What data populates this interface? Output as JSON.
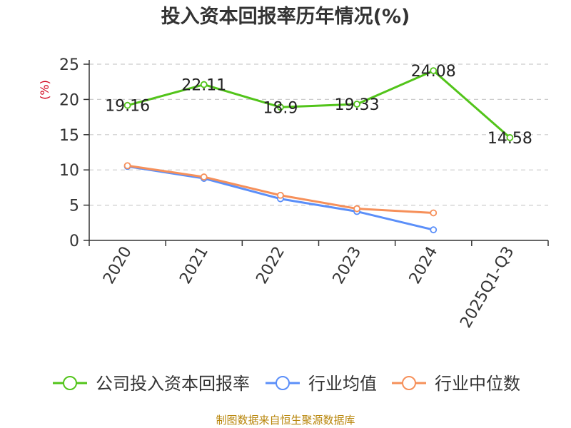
{
  "chart_data": {
    "type": "line",
    "title": "投入资本回报率历年情况(%)",
    "ylabel": "(%)",
    "xlabel": "",
    "ylim": [
      0,
      25
    ],
    "yticks": [
      0,
      5,
      10,
      15,
      20,
      25
    ],
    "grid": true,
    "legend_position": "bottom",
    "categories": [
      "2020",
      "2021",
      "2022",
      "2023",
      "2024",
      "2025Q1-Q3"
    ],
    "series": [
      {
        "name": "公司投入资本回报率",
        "color": "#52c41a",
        "values": [
          19.16,
          22.11,
          18.9,
          19.33,
          24.08,
          14.58
        ],
        "labels": [
          "19.16",
          "22.11",
          "18.9",
          "19.33",
          "24.08",
          "14.58"
        ],
        "show_labels": true
      },
      {
        "name": "行业均值",
        "color": "#5b8ff9",
        "values": [
          10.5,
          8.8,
          5.9,
          4.1,
          1.5,
          null
        ],
        "show_labels": false
      },
      {
        "name": "行业中位数",
        "color": "#f6905a",
        "values": [
          10.6,
          9.0,
          6.4,
          4.5,
          3.9,
          null
        ],
        "show_labels": false
      }
    ],
    "source": "制图数据来自恒生聚源数据库",
    "colors": {
      "axis": "#333333",
      "grid": "#cccccc",
      "ylabel": "#d0021b",
      "source": "#b8860b"
    }
  }
}
